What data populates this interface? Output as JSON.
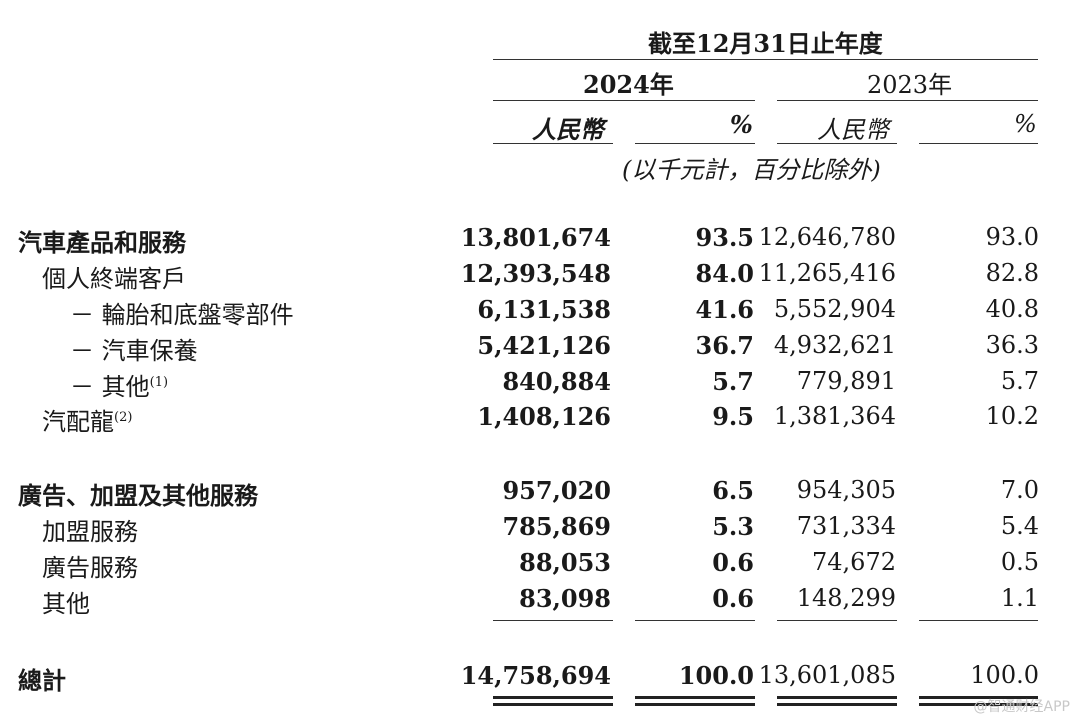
{
  "header": {
    "period": "截至12月31日止年度",
    "year_2024": "2024年",
    "year_2023": "2023年",
    "currency": "人民幣",
    "percent": "%",
    "unit_note": "(以千元計，百分比除外)"
  },
  "rows": [
    {
      "label": "汽車產品和服務",
      "sup": "",
      "v2024": "13,801,674",
      "p2024": "93.5",
      "v2023": "12,646,780",
      "p2023": "93.0"
    },
    {
      "label": "個人終端客戶",
      "sup": "",
      "v2024": "12,393,548",
      "p2024": "84.0",
      "v2023": "11,265,416",
      "p2023": "82.8"
    },
    {
      "label": "－ 輪胎和底盤零部件",
      "sup": "",
      "v2024": "6,131,538",
      "p2024": "41.6",
      "v2023": "5,552,904",
      "p2023": "40.8"
    },
    {
      "label": "－ 汽車保養",
      "sup": "",
      "v2024": "5,421,126",
      "p2024": "36.7",
      "v2023": "4,932,621",
      "p2023": "36.3"
    },
    {
      "label": "－ 其他",
      "sup": "(1)",
      "v2024": "840,884",
      "p2024": "5.7",
      "v2023": "779,891",
      "p2023": "5.7"
    },
    {
      "label": "汽配龍",
      "sup": "(2)",
      "v2024": "1,408,126",
      "p2024": "9.5",
      "v2023": "1,381,364",
      "p2023": "10.2"
    },
    {
      "label": "廣告、加盟及其他服務",
      "sup": "",
      "v2024": "957,020",
      "p2024": "6.5",
      "v2023": "954,305",
      "p2023": "7.0"
    },
    {
      "label": "加盟服務",
      "sup": "",
      "v2024": "785,869",
      "p2024": "5.3",
      "v2023": "731,334",
      "p2023": "5.4"
    },
    {
      "label": "廣告服務",
      "sup": "",
      "v2024": "88,053",
      "p2024": "0.6",
      "v2023": "74,672",
      "p2023": "0.5"
    },
    {
      "label": "其他",
      "sup": "",
      "v2024": "83,098",
      "p2024": "0.6",
      "v2023": "148,299",
      "p2023": "1.1"
    },
    {
      "label": "總計",
      "sup": "",
      "v2024": "14,758,694",
      "p2024": "100.0",
      "v2023": "13,601,085",
      "p2023": "100.0"
    }
  ],
  "watermark": "@智通财经APP"
}
